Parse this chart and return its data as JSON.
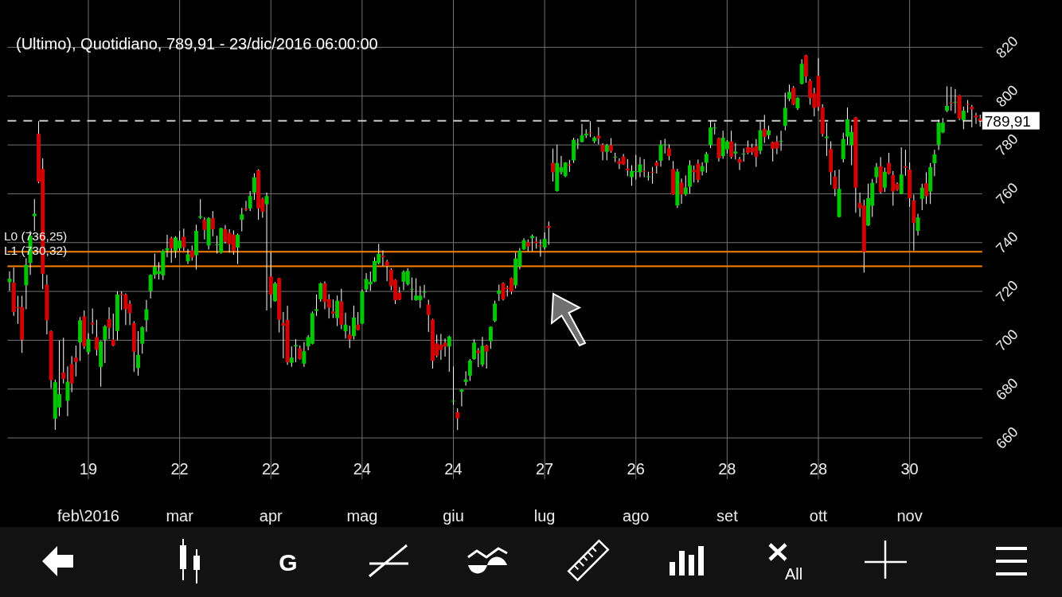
{
  "chart_data": {
    "type": "candlestick",
    "title": "(Ultimo), Quotidiano, 789,91 - 23/dic/2016 06:00:00",
    "categories": [
      null,
      null,
      null,
      null,
      null,
      null,
      null,
      null,
      null,
      null,
      null,
      null,
      null,
      null,
      null,
      null,
      null,
      null,
      null,
      "19\nfeb\\2016",
      null,
      null,
      null,
      null,
      null,
      null,
      null,
      null,
      null,
      null,
      null,
      null,
      null,
      null,
      null,
      null,
      null,
      null,
      null,
      null,
      null,
      "22\nmar",
      null,
      null,
      null,
      null,
      null,
      null,
      null,
      null,
      null,
      null,
      null,
      null,
      null,
      null,
      null,
      null,
      null,
      null,
      null,
      null,
      null,
      "22\napr",
      null,
      null,
      null,
      null,
      null,
      null,
      null,
      null,
      null,
      null,
      null,
      null,
      null,
      null,
      null,
      null,
      null,
      null,
      null,
      null,
      null,
      "24\nmag",
      null,
      null,
      null,
      null,
      null,
      null,
      null,
      null,
      null,
      null,
      null,
      null,
      null,
      null,
      null,
      null,
      null,
      null,
      null,
      null,
      null,
      "24\ngiu",
      null,
      null,
      null,
      null,
      null,
      null,
      null,
      null,
      null,
      null,
      null,
      null,
      null,
      null,
      null,
      null,
      null,
      null,
      null,
      null,
      null,
      "27\nlug",
      null,
      null,
      null,
      null,
      null,
      null,
      null,
      null,
      null,
      null,
      null,
      null,
      null,
      null,
      null,
      null,
      null,
      null,
      null,
      null,
      null,
      "26\nago",
      null,
      null,
      null,
      null,
      null,
      null,
      null,
      null,
      null,
      null,
      null,
      null,
      null,
      null,
      null,
      null,
      null,
      null,
      null,
      null,
      null,
      "28\nset",
      null,
      null,
      null,
      null,
      null,
      null,
      null,
      null,
      null,
      null,
      null,
      null,
      null,
      null,
      null,
      null,
      null,
      null,
      null,
      null,
      null,
      "28\nott",
      null,
      null,
      null,
      null,
      null,
      null,
      null,
      null,
      null,
      null,
      null,
      null,
      null,
      null,
      null,
      null,
      null,
      null,
      null,
      null,
      null,
      "30\nnov",
      null,
      null,
      null,
      null,
      null,
      null,
      null,
      null,
      null,
      null,
      null,
      null,
      null,
      null,
      null,
      null,
      null
    ],
    "ohlc": [
      [
        723.8,
        728.2,
        720.3,
        725.2
      ],
      [
        723.6,
        729.8,
        710.0,
        711.6
      ],
      [
        713.6,
        718.2,
        706.7,
        713.4
      ],
      [
        713.6,
        718.2,
        694.8,
        700.2
      ],
      [
        722.5,
        733.6,
        712.7,
        730.9
      ],
      [
        731.7,
        744.8,
        726.8,
        742.8
      ],
      [
        750.8,
        757.8,
        744.8,
        751.8
      ],
      [
        784.5,
        789.7,
        764.3,
        764.9
      ],
      [
        770.1,
        774.5,
        720.9,
        727.2
      ],
      [
        722.8,
        726.8,
        702.4,
        708.2
      ],
      [
        703.7,
        704.0,
        680.4,
        683.7
      ],
      [
        667.9,
        683.9,
        663.3,
        682.8
      ],
      [
        672.5,
        699.9,
        668.9,
        677.9
      ],
      [
        686.8,
        701.0,
        682.3,
        684.2
      ],
      [
        675.2,
        689.3,
        668.9,
        683.0
      ],
      [
        690.2,
        693.5,
        678.7,
        682.3
      ],
      [
        692.9,
        697.8,
        685.2,
        691.1
      ],
      [
        699.1,
        709.5,
        691.5,
        708.2
      ],
      [
        709.8,
        712.2,
        696.4,
        697.5
      ],
      [
        695.1,
        702.9,
        694.2,
        700.5
      ],
      [
        707.2,
        713.0,
        702.6,
        706.5
      ],
      [
        701.3,
        708.4,
        693.7,
        696.1
      ],
      [
        689.1,
        699.7,
        681.0,
        699.5
      ],
      [
        700.2,
        706.2,
        690.7,
        705.7
      ],
      [
        708.6,
        713.5,
        700.5,
        705.1
      ],
      [
        700.2,
        710.9,
        697.5,
        697.8
      ],
      [
        703.8,
        720.0,
        700.0,
        718.7
      ],
      [
        718.9,
        720.0,
        712.4,
        718.5
      ],
      [
        718.7,
        719.2,
        706.2,
        712.7
      ],
      [
        714.9,
        716.3,
        706.2,
        711.1
      ],
      [
        707.0,
        707.8,
        687.0,
        695.3
      ],
      [
        688.6,
        703.7,
        685.5,
        694.0
      ],
      [
        698.6,
        705.7,
        694.5,
        705.3
      ],
      [
        708.2,
        716.5,
        703.5,
        712.7
      ],
      [
        720.1,
        727.0,
        717.1,
        726.8
      ],
      [
        726.8,
        735.5,
        725.2,
        730.1
      ],
      [
        727.2,
        732.0,
        724.9,
        728.3
      ],
      [
        726.6,
        737.2,
        724.7,
        736.6
      ],
      [
        736.8,
        743.2,
        734.0,
        737.7
      ],
      [
        741.8,
        742.4,
        731.7,
        737.7
      ],
      [
        736.6,
        742.6,
        733.7,
        742.1
      ],
      [
        737.7,
        744.8,
        736.6,
        740.8
      ],
      [
        742.4,
        745.7,
        736.6,
        738.0
      ],
      [
        732.3,
        737.4,
        731.2,
        735.2
      ],
      [
        736.8,
        738.8,
        732.6,
        733.9
      ],
      [
        734.8,
        747.3,
        729.0,
        744.8
      ],
      [
        750.2,
        757.8,
        749.7,
        750.8
      ],
      [
        749.3,
        750.4,
        741.3,
        745.2
      ],
      [
        738.8,
        750.4,
        737.2,
        750.0
      ],
      [
        750.0,
        752.9,
        742.6,
        745.5
      ],
      [
        739.2,
        742.8,
        735.5,
        739.3
      ],
      [
        735.9,
        746.1,
        735.5,
        745.9
      ],
      [
        745.5,
        747.2,
        739.6,
        740.4
      ],
      [
        744.0,
        745.5,
        735.9,
        739.3
      ],
      [
        743.2,
        745.0,
        735.0,
        736.6
      ],
      [
        738.0,
        743.7,
        731.2,
        743.2
      ],
      [
        749.3,
        754.2,
        744.6,
        751.6
      ],
      [
        754.0,
        757.1,
        752.9,
        753.5
      ],
      [
        754.0,
        761.1,
        752.9,
        759.1
      ],
      [
        760.5,
        768.4,
        757.5,
        766.7
      ],
      [
        769.6,
        770.0,
        749.3,
        754.0
      ],
      [
        758.0,
        758.4,
        750.2,
        752.6
      ],
      [
        755.7,
        760.5,
        712.2,
        759.1
      ],
      [
        726.1,
        736.1,
        713.3,
        718.7
      ],
      [
        716.0,
        723.9,
        715.8,
        723.3
      ],
      [
        725.4,
        725.5,
        703.2,
        708.4
      ],
      [
        707.1,
        711.6,
        692.6,
        706.0
      ],
      [
        708.3,
        714.1,
        689.9,
        691.0
      ],
      [
        690.8,
        697.5,
        689.1,
        692.9
      ],
      [
        697.5,
        700.4,
        691.0,
        698.0
      ],
      [
        696.7,
        697.8,
        692.1,
        692.3
      ],
      [
        690.4,
        699.3,
        689.1,
        695.5
      ],
      [
        697.5,
        702.1,
        695.9,
        701.3
      ],
      [
        698.6,
        711.8,
        698.3,
        711.1
      ],
      [
        712.0,
        718.7,
        710.0,
        712.7
      ],
      [
        716.8,
        723.6,
        715.8,
        723.3
      ],
      [
        723.3,
        724.1,
        712.7,
        715.7
      ],
      [
        716.8,
        718.9,
        708.9,
        713.3
      ],
      [
        711.8,
        716.7,
        709.1,
        710.9
      ],
      [
        709.1,
        718.3,
        705.8,
        716.2
      ],
      [
        715.9,
        721.1,
        704.5,
        706.4
      ],
      [
        703.7,
        711.3,
        700.7,
        706.4
      ],
      [
        702.3,
        705.9,
        696.8,
        700.4
      ],
      [
        701.7,
        714.2,
        700.3,
        709.3
      ],
      [
        706.4,
        711.5,
        704.0,
        704.2
      ],
      [
        706.8,
        720.8,
        706.6,
        719.9
      ],
      [
        720.8,
        727.5,
        719.7,
        725.1
      ],
      [
        722.9,
        728.2,
        720.2,
        724.0
      ],
      [
        724.0,
        734.0,
        723.8,
        732.5
      ],
      [
        731.6,
        739.5,
        731.1,
        735.4
      ],
      [
        734.6,
        736.8,
        730.5,
        734.0
      ],
      [
        732.2,
        732.9,
        724.2,
        730.5
      ],
      [
        728.9,
        729.5,
        720.5,
        722.2
      ],
      [
        724.8,
        725.0,
        714.8,
        716.4
      ],
      [
        719.5,
        721.8,
        716.4,
        716.6
      ],
      [
        724.0,
        728.6,
        720.5,
        728.0
      ],
      [
        722.9,
        729.5,
        722.4,
        728.4
      ],
      [
        721.0,
        725.7,
        716.4,
        721.1
      ],
      [
        716.4,
        725.4,
        716.2,
        718.3
      ],
      [
        716.4,
        722.2,
        713.2,
        718.3
      ],
      [
        719.7,
        722.7,
        717.3,
        719.8
      ],
      [
        714.6,
        716.6,
        703.4,
        710.4
      ],
      [
        708.5,
        708.8,
        688.4,
        691.6
      ],
      [
        698.7,
        702.3,
        693.0,
        693.6
      ],
      [
        698.2,
        702.6,
        692.0,
        696.0
      ],
      [
        699.0,
        700.7,
        693.3,
        697.4
      ],
      [
        697.4,
        701.9,
        687.1,
        701.5
      ],
      [
        675.1,
        689.2,
        673.5,
        675.2
      ],
      [
        670.5,
        672.1,
        663.2,
        668.0
      ],
      [
        678.9,
        680.0,
        672.9,
        679.8
      ],
      [
        682.9,
        687.3,
        681.4,
        684.0
      ],
      [
        685.4,
        692.3,
        683.3,
        691.7
      ],
      [
        692.3,
        700.4,
        692.0,
        699.0
      ],
      [
        695.8,
        696.8,
        689.0,
        694.7
      ],
      [
        690.0,
        701.4,
        689.2,
        697.7
      ],
      [
        697.9,
        698.2,
        688.4,
        695.4
      ],
      [
        699.6,
        705.7,
        696.5,
        705.5
      ],
      [
        707.9,
        716.2,
        707.4,
        715.0
      ],
      [
        719.0,
        722.8,
        716.1,
        720.4
      ],
      [
        723.4,
        723.7,
        716.3,
        716.8
      ],
      [
        721.5,
        722.3,
        717.9,
        721.0
      ],
      [
        725.5,
        725.7,
        718.8,
        719.9
      ],
      [
        722.5,
        735.9,
        721.2,
        733.5
      ],
      [
        730.2,
        737.8,
        729.0,
        736.7
      ],
      [
        737.2,
        741.8,
        737.0,
        741.0
      ],
      [
        740.1,
        741.3,
        736.4,
        738.4
      ],
      [
        741.8,
        743.3,
        736.4,
        742.7
      ],
      [
        740.4,
        742.4,
        737.5,
        739.8
      ],
      [
        738.8,
        741.3,
        734.2,
        738.4
      ],
      [
        738.0,
        744.2,
        737.2,
        741.5
      ],
      [
        746.8,
        748.6,
        739.1,
        746.0
      ],
      [
        772.6,
        778.5,
        765.0,
        768.8
      ],
      [
        761.1,
        780.1,
        760.9,
        772.6
      ],
      [
        768.8,
        775.5,
        767.9,
        770.9
      ],
      [
        767.2,
        773.0,
        766.8,
        772.8
      ],
      [
        772.0,
        773.9,
        769.0,
        771.6
      ],
      [
        773.7,
        782.9,
        772.6,
        782.1
      ],
      [
        780.4,
        782.6,
        778.3,
        780.5
      ],
      [
        781.2,
        788.6,
        781.0,
        783.9
      ],
      [
        783.9,
        786.4,
        782.8,
        784.6
      ],
      [
        785.1,
        789.7,
        783.2,
        784.8
      ],
      [
        781.5,
        783.5,
        780.7,
        783.0
      ],
      [
        783.7,
        787.3,
        780.2,
        782.6
      ],
      [
        780.1,
        780.7,
        773.7,
        777.2
      ],
      [
        777.2,
        780.4,
        773.7,
        779.9
      ],
      [
        779.9,
        782.8,
        776.8,
        777.5
      ],
      [
        775.0,
        776.8,
        773.0,
        775.2
      ],
      [
        773.4,
        774.5,
        770.1,
        772.3
      ],
      [
        775.2,
        776.3,
        771.8,
        772.0
      ],
      [
        770.3,
        774.2,
        767.2,
        769.6
      ],
      [
        766.8,
        771.7,
        763.3,
        769.3
      ],
      [
        769.1,
        775.9,
        765.8,
        769.3
      ],
      [
        768.8,
        775.0,
        766.8,
        772.0
      ],
      [
        769.3,
        774.2,
        766.8,
        769.1
      ],
      [
        766.8,
        769.0,
        765.4,
        767.1
      ],
      [
        769.0,
        771.0,
        764.1,
        768.8
      ],
      [
        772.8,
        773.6,
        768.3,
        771.4
      ],
      [
        773.5,
        782.0,
        771.1,
        780.0
      ],
      [
        779.9,
        782.5,
        776.5,
        780.2
      ],
      [
        778.6,
        780.2,
        773.7,
        775.4
      ],
      [
        770.1,
        773.4,
        759.5,
        759.7
      ],
      [
        755.2,
        770.2,
        754.2,
        769.1
      ],
      [
        764.6,
        766.2,
        755.9,
        759.8
      ],
      [
        759.7,
        767.5,
        759.1,
        762.6
      ],
      [
        762.9,
        773.7,
        760.1,
        771.7
      ],
      [
        769.8,
        771.5,
        764.6,
        768.8
      ],
      [
        772.4,
        774.0,
        764.6,
        765.7
      ],
      [
        769.1,
        772.9,
        767.5,
        771.3
      ],
      [
        772.7,
        777.1,
        768.6,
        776.3
      ],
      [
        780.0,
        790.0,
        778.7,
        787.1
      ],
      [
        786.8,
        789.0,
        784.3,
        787.1
      ],
      [
        782.8,
        783.0,
        773.2,
        774.6
      ],
      [
        775.4,
        785.8,
        774.3,
        783.0
      ],
      [
        778.2,
        782.0,
        776.5,
        781.4
      ],
      [
        781.4,
        785.8,
        774.3,
        775.1
      ],
      [
        776.5,
        780.8,
        774.0,
        777.3
      ],
      [
        774.2,
        775.1,
        769.7,
        772.7
      ],
      [
        776.1,
        778.6,
        773.2,
        776.4
      ],
      [
        779.1,
        781.8,
        776.2,
        776.7
      ],
      [
        778.9,
        780.5,
        775.9,
        777.0
      ],
      [
        779.5,
        782.4,
        771.0,
        775.1
      ],
      [
        777.6,
        789.5,
        776.2,
        786.0
      ],
      [
        786.5,
        792.3,
        780.8,
        783.3
      ],
      [
        784.0,
        787.9,
        782.4,
        786.0
      ],
      [
        781.1,
        781.3,
        773.2,
        778.4
      ],
      [
        781.4,
        783.8,
        776.2,
        778.6
      ],
      [
        781.6,
        785.8,
        777.6,
        781.7
      ],
      [
        787.8,
        801.4,
        786.0,
        795.2
      ],
      [
        798.8,
        804.7,
        797.9,
        801.7
      ],
      [
        803.4,
        804.1,
        796.3,
        796.6
      ],
      [
        795.0,
        799.5,
        794.3,
        799.3
      ],
      [
        805.0,
        815.1,
        804.8,
        813.2
      ],
      [
        816.7,
        816.9,
        805.5,
        808.0
      ],
      [
        806.3,
        807.0,
        796.5,
        799.2
      ],
      [
        801.2,
        803.4,
        791.7,
        795.2
      ],
      [
        808.3,
        815.5,
        793.9,
        795.5
      ],
      [
        795.3,
        796.7,
        783.4,
        784.5
      ],
      [
        782.8,
        789.1,
        775.5,
        783.4
      ],
      [
        778.3,
        781.5,
        763.6,
        768.8
      ],
      [
        767.1,
        769.6,
        759.0,
        762.0
      ],
      [
        750.5,
        769.9,
        750.3,
        762.0
      ],
      [
        774.2,
        785.0,
        772.8,
        782.4
      ],
      [
        783.4,
        795.3,
        780.1,
        790.5
      ],
      [
        779.9,
        788.0,
        771.7,
        785.3
      ],
      [
        791.3,
        791.5,
        752.2,
        762.5
      ],
      [
        756.2,
        760.5,
        750.5,
        754.1
      ],
      [
        755.2,
        757.6,
        727.7,
        736.2
      ],
      [
        747.0,
        764.1,
        746.8,
        758.2
      ],
      [
        755.1,
        766.1,
        750.5,
        764.5
      ],
      [
        766.8,
        772.6,
        764.3,
        771.0
      ],
      [
        771.2,
        775.0,
        760.1,
        760.7
      ],
      [
        762.5,
        770.7,
        760.7,
        769.0
      ],
      [
        772.6,
        776.8,
        767.9,
        768.2
      ],
      [
        767.7,
        769.3,
        755.1,
        760.9
      ],
      [
        764.1,
        764.7,
        761.2,
        761.6
      ],
      [
        760.0,
        779.0,
        759.8,
        767.9
      ],
      [
        771.2,
        778.0,
        767.4,
        770.7
      ],
      [
        769.9,
        772.8,
        754.7,
        758.2
      ],
      [
        757.3,
        759.6,
        736.7,
        748.0
      ],
      [
        744.8,
        751.8,
        742.9,
        750.3
      ],
      [
        757.9,
        764.1,
        753.3,
        762.5
      ],
      [
        764.3,
        768.8,
        755.8,
        759.0
      ],
      [
        760.9,
        772.6,
        755.8,
        770.9
      ],
      [
        772.5,
        778.0,
        767.2,
        776.1
      ],
      [
        780.1,
        790.4,
        777.9,
        789.1
      ],
      [
        785.1,
        791.0,
        784.8,
        789.1
      ],
      [
        794.0,
        804.0,
        793.5,
        796.0
      ],
      [
        797.3,
        803.8,
        794.0,
        797.1
      ],
      [
        797.5,
        802.9,
        792.9,
        797.7
      ],
      [
        800.3,
        800.5,
        790.2,
        790.8
      ],
      [
        790.2,
        795.7,
        786.4,
        794.0
      ],
      [
        796.8,
        798.4,
        793.2,
        796.6
      ],
      [
        795.7,
        796.4,
        787.2,
        794.6
      ],
      [
        792.1,
        793.2,
        788.6,
        791.3
      ],
      [
        790.8,
        792.4,
        787.5,
        789.91
      ]
    ],
    "colors": [
      "#00c800",
      "#d40000",
      "#d40000",
      "#d40000",
      "#00c800",
      "#00c800",
      "#00c800",
      "#d40000",
      "#d40000",
      "#d40000",
      "#d40000",
      "#00c800",
      "#00c800",
      "#d40000",
      "#00c800",
      "#d40000",
      "#d40000",
      "#00c800",
      "#d40000",
      "#00c800",
      "#d40000",
      "#d40000",
      "#00c800",
      "#00c800",
      "#d40000",
      "#d40000",
      "#00c800",
      "#d40000",
      "#d40000",
      "#d40000",
      "#d40000",
      "#00c800",
      "#00c800",
      "#00c800",
      "#00c800",
      "#00c800",
      "#00c800",
      "#00c800",
      "#00c800",
      "#d40000",
      "#00c800",
      "#00c800",
      "#d40000",
      "#00c800",
      "#d40000",
      "#00c800",
      "#00c800",
      "#d40000",
      "#00c800",
      "#d40000",
      "#00c800",
      "#00c800",
      "#d40000",
      "#d40000",
      "#d40000",
      "#00c800",
      "#00c800",
      "#d40000",
      "#00c800",
      "#00c800",
      "#d40000",
      "#d40000",
      "#00c800",
      "#d40000",
      "#00c800",
      "#d40000",
      "#d40000",
      "#d40000",
      "#00c800",
      "#00c800",
      "#d40000",
      "#00c800",
      "#00c800",
      "#00c800",
      "#00c800",
      "#00c800",
      "#d40000",
      "#d40000",
      "#d40000",
      "#00c800",
      "#d40000",
      "#00c800",
      "#d40000",
      "#00c800",
      "#d40000",
      "#00c800",
      "#00c800",
      "#00c800",
      "#00c800",
      "#00c800",
      "#d40000",
      "#d40000",
      "#d40000",
      "#d40000",
      "#d40000",
      "#00c800",
      "#00c800",
      "#00c800",
      "#00c800",
      "#00c800",
      "#00c800",
      "#d40000",
      "#d40000",
      "#d40000",
      "#d40000",
      "#d40000",
      "#00c800",
      "#00c800",
      "#d40000",
      "#00c800",
      "#00c800",
      "#00c800",
      "#00c800",
      "#d40000",
      "#00c800",
      "#d40000",
      "#00c800",
      "#00c800",
      "#00c800",
      "#d40000",
      "#d40000",
      "#d40000",
      "#00c800",
      "#00c800",
      "#00c800",
      "#d40000",
      "#00c800",
      "#d40000",
      "#d40000",
      "#00c800",
      "#d40000",
      "#d40000",
      "#00c800",
      "#00c800",
      "#00c800",
      "#d40000",
      "#00c800",
      "#00c800",
      "#00c800",
      "#00c800",
      "#d40000",
      "#00c800",
      "#d40000",
      "#d40000",
      "#00c800",
      "#d40000",
      "#00c800",
      "#d40000",
      "#d40000",
      "#d40000",
      "#00c800",
      "#00c800",
      "#00c800",
      "#d40000",
      "#00c800",
      "#d40000",
      "#d40000",
      "#00c800",
      "#00c800",
      "#d40000",
      "#d40000",
      "#00c800",
      "#d40000",
      "#00c800",
      "#00c800",
      "#d40000",
      "#d40000",
      "#00c800",
      "#00c800",
      "#00c800",
      "#00c800",
      "#d40000",
      "#00c800",
      "#00c800",
      "#d40000",
      "#00c800",
      "#d40000",
      "#00c800",
      "#d40000",
      "#d40000",
      "#d40000",
      "#00c800",
      "#d40000",
      "#00c800",
      "#d40000",
      "#d40000",
      "#00c800",
      "#00c800",
      "#00c800",
      "#d40000",
      "#00c800",
      "#00c800",
      "#d40000",
      "#d40000",
      "#d40000",
      "#d40000",
      "#d40000",
      "#00c800",
      "#d40000",
      "#d40000",
      "#00c800",
      "#00c800",
      "#00c800",
      "#00c800",
      "#d40000",
      "#d40000",
      "#d40000",
      "#00c800",
      "#00c800",
      "#00c800",
      "#d40000",
      "#00c800",
      "#d40000",
      "#d40000",
      "#d40000",
      "#00c800",
      "#d40000",
      "#d40000",
      "#d40000",
      "#00c800",
      "#00c800",
      "#d40000",
      "#00c800",
      "#00c800",
      "#00c800",
      "#00c800",
      "#00c800",
      "#d40000",
      "#00c800",
      "#d40000",
      "#00c800",
      "#d40000",
      "#d40000",
      "#d40000",
      "#d40000"
    ],
    "ylim": [
      644,
      839
    ],
    "yticks": [
      660,
      680,
      700,
      720,
      740,
      760,
      780,
      800,
      820
    ],
    "grid": true,
    "ref_lines": [
      {
        "axis": "y",
        "value": 736.25,
        "label": "L0 (736,25)",
        "color": "#ff8000"
      },
      {
        "axis": "y",
        "value": 730.32,
        "label": "L1 (730,32)",
        "color": "#ff8000"
      },
      {
        "axis": "y",
        "value": 789.91,
        "label": "789,91",
        "color": "#c8c8c8",
        "line_style": "dashed"
      }
    ],
    "annotations": [
      "G",
      "All"
    ]
  }
}
